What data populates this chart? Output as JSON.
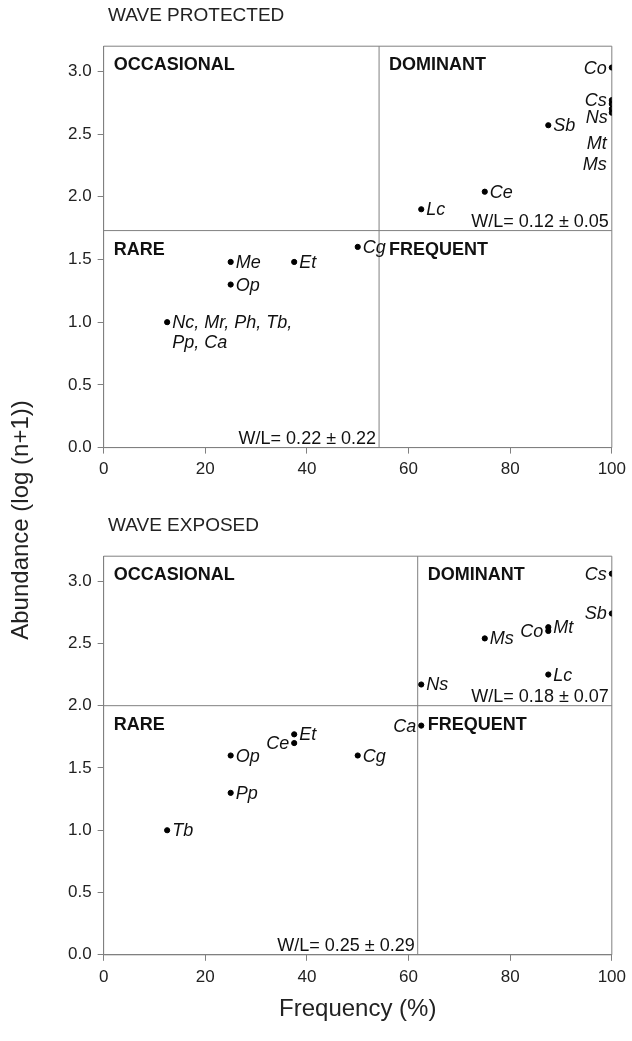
{
  "chart_data": [
    {
      "type": "scatter",
      "title": "WAVE PROTECTED",
      "ylabel": "Abundance (log (n+1))",
      "color": "#000000",
      "marker": "circle",
      "legend": false,
      "grid": false,
      "x": [
        100,
        100,
        100,
        100,
        100,
        87.5,
        75,
        62.5,
        50,
        25,
        37.5,
        25,
        12.5
      ],
      "values": [
        3.03,
        2.77,
        2.74,
        2.7,
        2.67,
        2.57,
        2.04,
        1.9,
        1.6,
        1.48,
        1.48,
        1.3,
        1.0
      ],
      "value_labels": [
        "Co",
        "Cs",
        "Ns",
        "Mt",
        "Ms",
        "Sb",
        "Ce",
        "Lc",
        "Cg",
        "Me",
        "Et",
        "Op",
        "Nc, Mr, Ph, Tb, Pp, Ca"
      ],
      "xlim": [
        0,
        100
      ],
      "xticks": [
        0,
        20,
        40,
        60,
        80,
        100
      ],
      "ylim": [
        0,
        3.2
      ],
      "yticks": [
        {
          "value": 0,
          "label": "0.0"
        },
        0.5,
        {
          "value": 1,
          "label": "1.0"
        },
        1.5,
        {
          "value": 2,
          "label": "2.0"
        },
        2.5,
        {
          "value": 3,
          "label": "3.0"
        }
      ],
      "ref_lines": [
        {
          "axis": "x",
          "value": 54.2,
          "color": "#808080"
        },
        {
          "axis": "y",
          "value": 1.73,
          "color": "#808080"
        }
      ],
      "annotations": [
        "OCCASIONAL",
        "DOMINANT",
        "RARE",
        "FREQUENT",
        "W/L= 0.12 ± 0.05",
        "W/L= 0.22 ± 0.22"
      ]
    },
    {
      "type": "scatter",
      "title": "WAVE EXPOSED",
      "xlabel": "Frequency (%)",
      "color": "#000000",
      "marker": "circle",
      "legend": false,
      "grid": false,
      "x": [
        100,
        100,
        87.5,
        87.5,
        75,
        87.5,
        62.5,
        62.5,
        37.5,
        37.5,
        25,
        50,
        25,
        12.5
      ],
      "values": [
        3.06,
        2.74,
        2.63,
        2.6,
        2.54,
        2.25,
        2.17,
        1.84,
        1.77,
        1.7,
        1.6,
        1.6,
        1.3,
        1.0
      ],
      "value_labels": [
        "Cs",
        "Sb",
        "Mt",
        "Co",
        "Ms",
        "Lc",
        "Ns",
        "Ca",
        "Et",
        "Ce",
        "Op",
        "Cg",
        "Pp",
        "Tb"
      ],
      "xlim": [
        0,
        100
      ],
      "xticks": [
        0,
        20,
        40,
        60,
        80,
        100
      ],
      "ylim": [
        0,
        3.2
      ],
      "yticks": [
        {
          "value": 0,
          "label": "0.0"
        },
        0.5,
        {
          "value": 1,
          "label": "1.0"
        },
        1.5,
        {
          "value": 2,
          "label": "2.0"
        },
        2.5,
        {
          "value": 3,
          "label": "3.0"
        }
      ],
      "ref_lines": [
        {
          "axis": "x",
          "value": 61.8,
          "color": "#808080"
        },
        {
          "axis": "y",
          "value": 2.0,
          "color": "#808080"
        }
      ],
      "annotations": [
        "OCCASIONAL",
        "DOMINANT",
        "RARE",
        "FREQUENT",
        "W/L= 0.18 ± 0.07",
        "W/L= 0.25 ± 0.29"
      ]
    }
  ]
}
